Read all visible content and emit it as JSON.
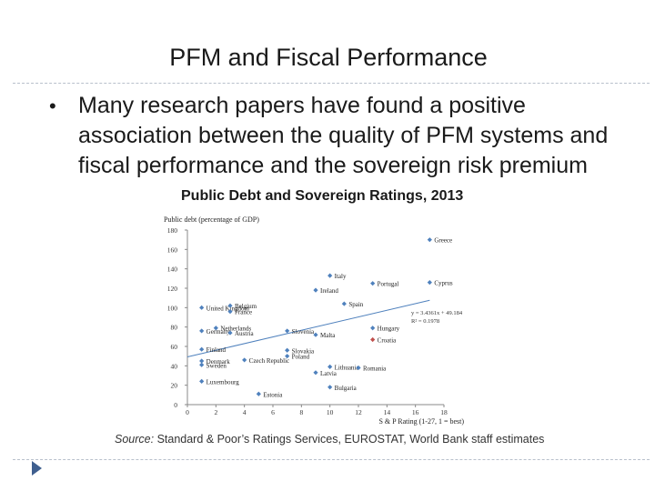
{
  "slide": {
    "title": "PFM and Fiscal Performance",
    "bullet": "Many research papers have found a positive association between the quality of PFM systems and fiscal performance and the sovereign risk premium",
    "bullet_symbol": "•",
    "chart_heading": "Public Debt and Sovereign Ratings, 2013",
    "source_label": "Source:",
    "source_text": " Standard & Poor’s Ratings Services, EUROSTAT, World Bank staff estimates"
  },
  "chart_data": {
    "type": "scatter",
    "title": "Public Debt and Sovereign Ratings, 2013",
    "ylabel": "Public debt (percentage of GDP)",
    "xlabel": "S & P Rating (1-27, 1 = best)",
    "xlim": [
      0,
      18
    ],
    "ylim": [
      0,
      180
    ],
    "x_ticks": [
      0,
      2,
      4,
      6,
      8,
      10,
      12,
      14,
      16,
      18
    ],
    "y_ticks": [
      0,
      20,
      40,
      60,
      80,
      100,
      120,
      140,
      160,
      180
    ],
    "grid": false,
    "legend_position": "right",
    "series": [
      {
        "name": "",
        "color": "#4f81bd",
        "points": [
          {
            "label": "Greece",
            "x": 17,
            "y": 170
          },
          {
            "label": "Italy",
            "x": 10,
            "y": 133
          },
          {
            "label": "Portugal",
            "x": 13,
            "y": 125
          },
          {
            "label": "Cyprus",
            "x": 17,
            "y": 126
          },
          {
            "label": "Ireland",
            "x": 9,
            "y": 118
          },
          {
            "label": "Spain",
            "x": 11,
            "y": 104
          },
          {
            "label": "United Kingdom",
            "x": 1,
            "y": 100
          },
          {
            "label": "Belgium",
            "x": 3,
            "y": 102
          },
          {
            "label": "France",
            "x": 3,
            "y": 96
          },
          {
            "label": "Netherlands",
            "x": 2,
            "y": 79
          },
          {
            "label": "Germany",
            "x": 1,
            "y": 76
          },
          {
            "label": "Austria",
            "x": 3,
            "y": 74
          },
          {
            "label": "Slovenia",
            "x": 7,
            "y": 76
          },
          {
            "label": "Malta",
            "x": 9,
            "y": 72
          },
          {
            "label": "Hungary",
            "x": 13,
            "y": 79
          },
          {
            "label": "Finland",
            "x": 1,
            "y": 57
          },
          {
            "label": "Slovakia",
            "x": 7,
            "y": 56
          },
          {
            "label": "Poland",
            "x": 7,
            "y": 50
          },
          {
            "label": "Denmark",
            "x": 1,
            "y": 45
          },
          {
            "label": "Czech Republic",
            "x": 4,
            "y": 46
          },
          {
            "label": "Sweden",
            "x": 1,
            "y": 41
          },
          {
            "label": "Lithuania",
            "x": 10,
            "y": 39
          },
          {
            "label": "Romania",
            "x": 12,
            "y": 38
          },
          {
            "label": "Latvia",
            "x": 9,
            "y": 33
          },
          {
            "label": "Luxembourg",
            "x": 1,
            "y": 24
          },
          {
            "label": "Bulgaria",
            "x": 10,
            "y": 18
          },
          {
            "label": "Estonia",
            "x": 5,
            "y": 11
          }
        ]
      },
      {
        "name": "Croatia",
        "color": "#c0504d",
        "points": [
          {
            "label": "Croatia",
            "x": 13,
            "y": 67
          }
        ]
      }
    ],
    "trendline": {
      "slope": 3.4361,
      "intercept": 49.184,
      "equation_label": "y = 3.4361x + 49.184",
      "r2_label": "R² = 0.1978",
      "color": "#4f81bd"
    }
  }
}
